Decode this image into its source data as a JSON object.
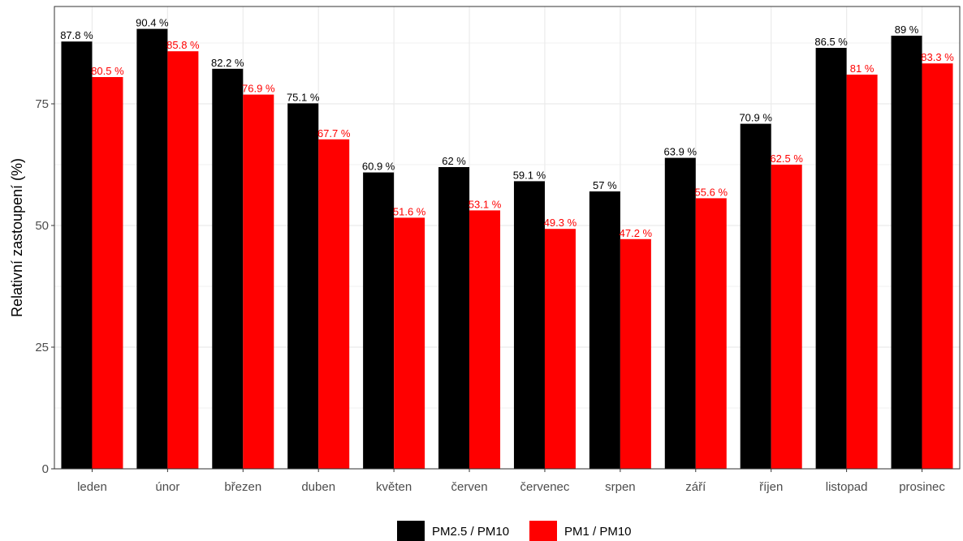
{
  "chart_data": {
    "type": "bar",
    "title": "",
    "xlabel": "",
    "ylabel": "Relativní zastoupení (%)",
    "ylim": [
      0,
      95
    ],
    "yticks": [
      0,
      25,
      50,
      75
    ],
    "grid": true,
    "legend_position": "bottom",
    "categories": [
      "leden",
      "únor",
      "březen",
      "duben",
      "květen",
      "červen",
      "červenec",
      "srpen",
      "září",
      "říjen",
      "listopad",
      "prosinec"
    ],
    "series": [
      {
        "name": "PM2.5 / PM10",
        "color": "#000000",
        "values": [
          87.8,
          90.4,
          82.2,
          75.1,
          60.9,
          62,
          59.1,
          57,
          63.9,
          70.9,
          86.5,
          89
        ],
        "labels": [
          "87.8 %",
          "90.4 %",
          "82.2 %",
          "75.1 %",
          "60.9 %",
          "62 %",
          "59.1 %",
          "57 %",
          "63.9 %",
          "70.9 %",
          "86.5 %",
          "89 %"
        ]
      },
      {
        "name": "PM1 / PM10",
        "color": "#ff0000",
        "values": [
          80.5,
          85.8,
          76.9,
          67.7,
          51.6,
          53.1,
          49.3,
          47.2,
          55.6,
          62.5,
          81,
          83.3
        ],
        "labels": [
          "80.5 %",
          "85.8 %",
          "76.9 %",
          "67.7 %",
          "51.6 %",
          "53.1 %",
          "49.3 %",
          "47.2 %",
          "55.6 %",
          "62.5 %",
          "81 %",
          "83.3 %"
        ]
      }
    ]
  }
}
